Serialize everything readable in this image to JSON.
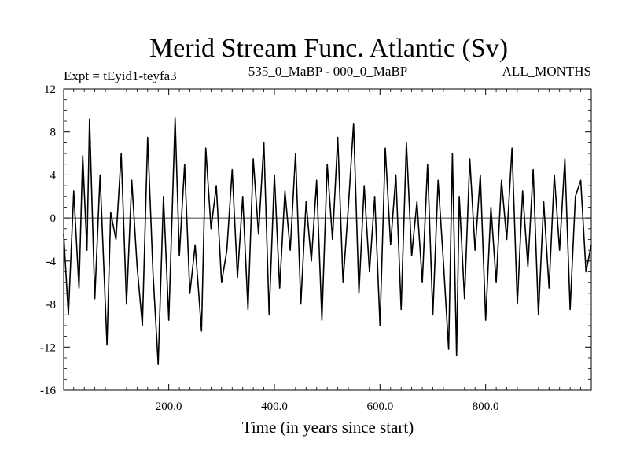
{
  "chart_data": {
    "type": "line",
    "title": "Merid Stream Func. Atlantic (Sv)",
    "subtitle_left": "Expt = tEyid1-teyfa3",
    "subtitle_center": "535_0_MaBP - 000_0_MaBP",
    "subtitle_right": "ALL_MONTHS",
    "xlabel": "Time (in years since start)",
    "ylabel": "",
    "xlim": [
      1,
      1000
    ],
    "ylim": [
      -16,
      12
    ],
    "xticks": [
      200,
      400,
      600,
      800
    ],
    "xtick_labels": [
      "200.0",
      "400.0",
      "600.0",
      "800.0"
    ],
    "yticks": [
      -16,
      -12,
      -8,
      -4,
      0,
      4,
      8,
      12
    ],
    "ytick_labels": [
      "-16",
      "-12",
      "-8",
      "-4",
      "0",
      "4",
      "8",
      "12"
    ],
    "zero_line": true,
    "grid": false,
    "series": [
      {
        "color": "#000000",
        "x": [
          1,
          10,
          20,
          30,
          37,
          45,
          50,
          60,
          70,
          83,
          90,
          100,
          110,
          120,
          130,
          140,
          150,
          160,
          170,
          180,
          190,
          200,
          212,
          220,
          230,
          240,
          250,
          262,
          270,
          280,
          290,
          300,
          310,
          320,
          330,
          340,
          350,
          360,
          370,
          380,
          390,
          400,
          410,
          420,
          430,
          440,
          450,
          460,
          470,
          480,
          490,
          500,
          510,
          520,
          530,
          540,
          550,
          560,
          570,
          580,
          590,
          600,
          610,
          620,
          630,
          640,
          650,
          660,
          670,
          680,
          690,
          700,
          710,
          720,
          730,
          737,
          745,
          750,
          760,
          770,
          780,
          790,
          800,
          810,
          820,
          830,
          840,
          850,
          860,
          870,
          880,
          890,
          900,
          910,
          920,
          930,
          940,
          950,
          960,
          970,
          980,
          990,
          1000
        ],
        "y": [
          -1.5,
          -9.0,
          2.5,
          -6.5,
          5.8,
          -3.0,
          9.2,
          -7.5,
          4.0,
          -11.8,
          0.5,
          -2.0,
          6.0,
          -8.0,
          3.5,
          -4.5,
          -10.0,
          7.5,
          -5.0,
          -13.6,
          2.0,
          -9.5,
          9.3,
          -3.5,
          5.0,
          -7.0,
          -2.5,
          -10.5,
          6.5,
          -1.0,
          3.0,
          -6.0,
          -3.0,
          4.5,
          -5.5,
          2.0,
          -8.5,
          5.5,
          -1.5,
          7.0,
          -9.0,
          4.0,
          -6.5,
          2.5,
          -3.0,
          6.0,
          -8.0,
          1.5,
          -4.0,
          3.5,
          -9.5,
          5.0,
          -2.0,
          7.5,
          -6.0,
          1.0,
          8.8,
          -7.0,
          3.0,
          -5.0,
          2.0,
          -10.0,
          6.5,
          -2.5,
          4.0,
          -8.5,
          7.0,
          -3.5,
          1.5,
          -6.0,
          5.0,
          -9.0,
          3.5,
          -4.0,
          -12.2,
          6.0,
          -12.8,
          2.0,
          -7.5,
          5.5,
          -3.0,
          4.0,
          -9.5,
          1.0,
          -6.0,
          3.5,
          -2.0,
          6.5,
          -8.0,
          2.5,
          -4.5,
          4.5,
          -9.0,
          1.5,
          -6.5,
          4.0,
          -3.0,
          5.5,
          -8.5,
          2.0,
          3.5,
          -5.0,
          -2.5
        ]
      }
    ]
  }
}
